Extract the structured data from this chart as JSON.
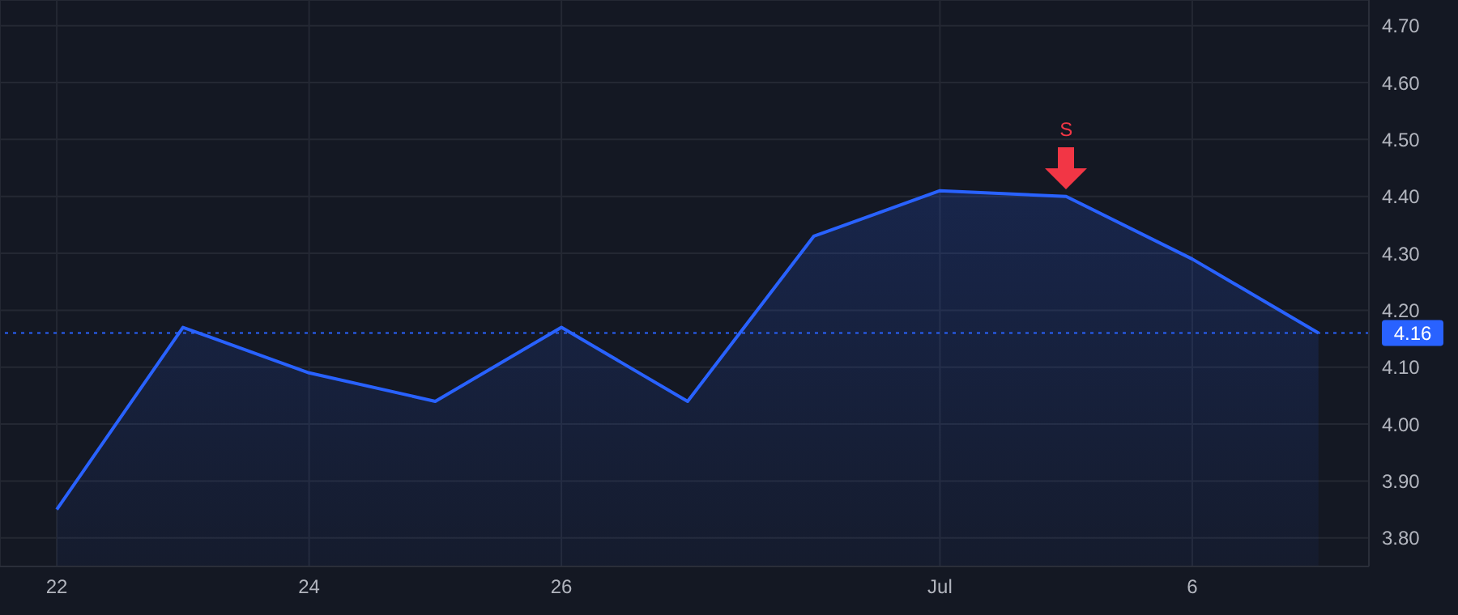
{
  "chart_data": {
    "type": "area",
    "categories": [
      "22",
      null,
      "24",
      null,
      "26",
      null,
      null,
      "Jul",
      null,
      "6",
      null
    ],
    "series": [
      {
        "color": "#2962ff",
        "values": [
          3.85,
          4.17,
          4.09,
          4.04,
          4.17,
          4.04,
          4.33,
          4.41,
          4.4,
          4.29,
          4.16
        ]
      }
    ],
    "ylim": [
      3.75,
      4.745
    ],
    "yticks": [
      {
        "value": 3.8,
        "label": "3.80"
      },
      {
        "value": 3.9,
        "label": "3.90"
      },
      {
        "value": 4.0,
        "label": "4.00"
      },
      {
        "value": 4.1,
        "label": "4.10"
      },
      {
        "value": 4.2,
        "label": "4.20"
      },
      {
        "value": 4.3,
        "label": "4.30"
      },
      {
        "value": 4.4,
        "label": "4.40"
      },
      {
        "value": 4.5,
        "label": "4.50"
      },
      {
        "value": 4.6,
        "label": "4.60"
      },
      {
        "value": 4.7,
        "label": "4.70"
      }
    ],
    "grid": true,
    "ref_lines": [
      {
        "axis": "y",
        "value": 4.16,
        "label": "4.16",
        "color": "#2962ff",
        "line_style": "dotted"
      }
    ],
    "annotations": [
      {
        "text": "S",
        "y": 4.4
      }
    ]
  }
}
